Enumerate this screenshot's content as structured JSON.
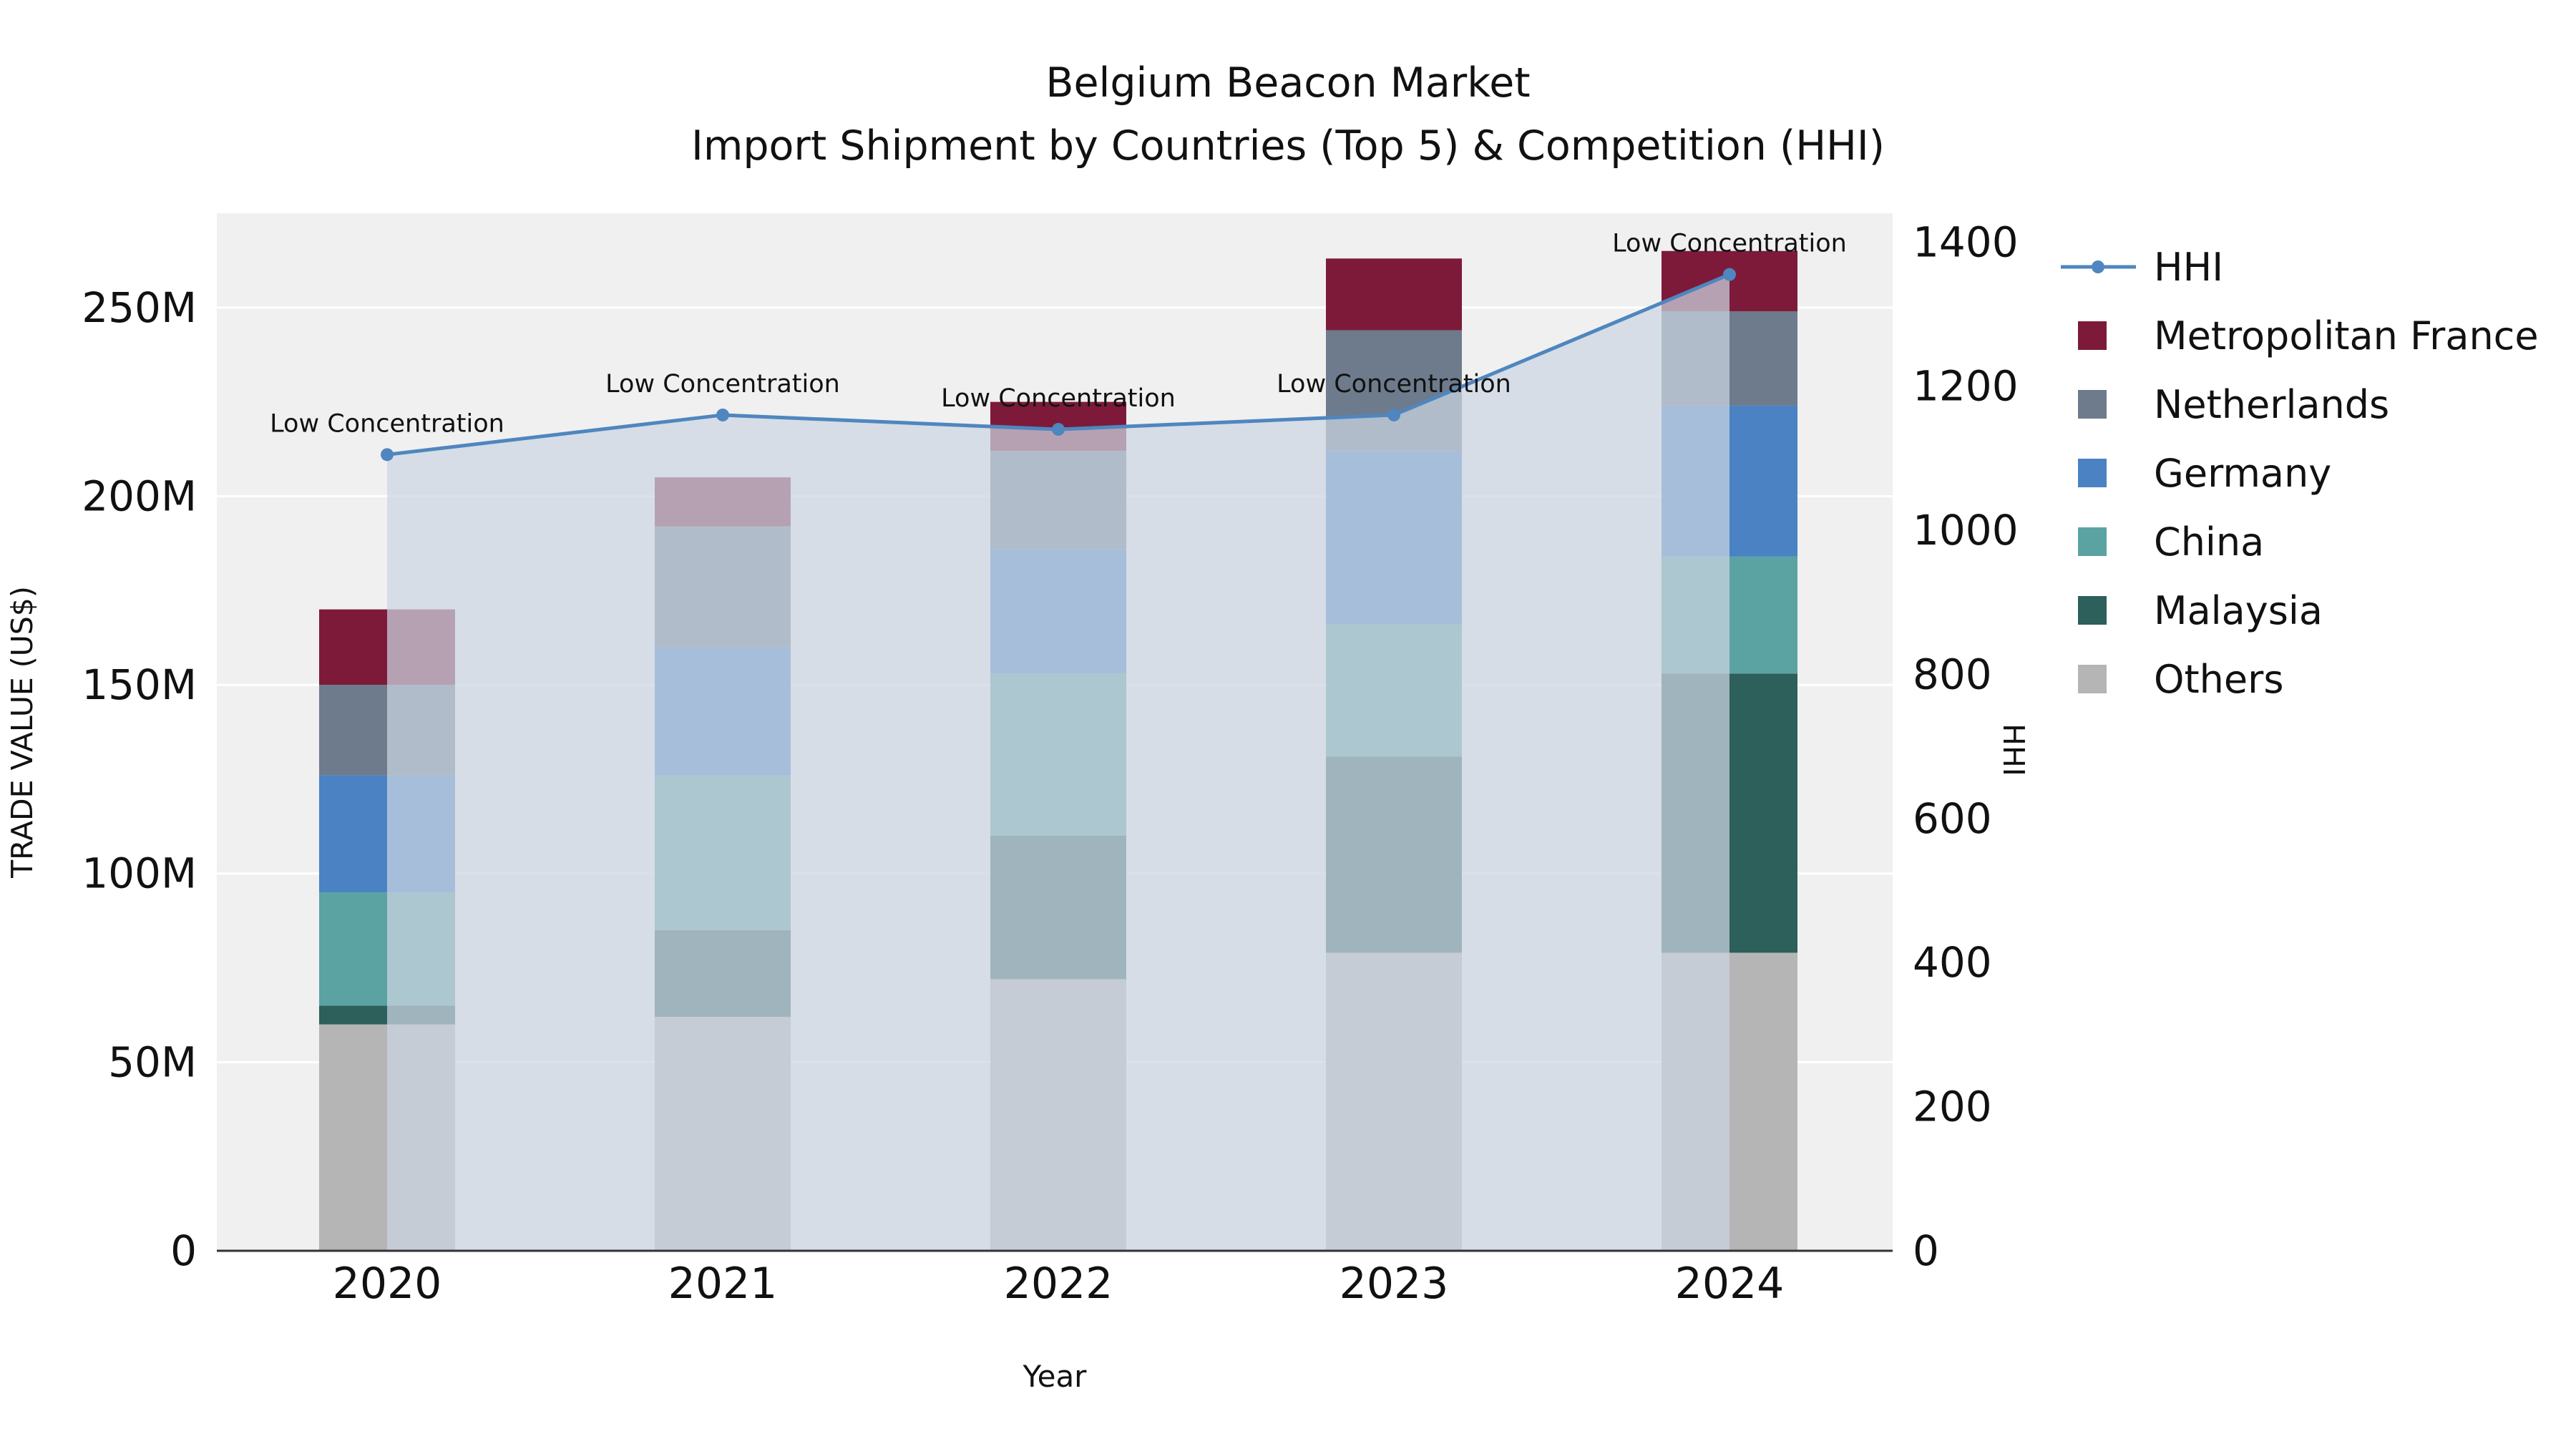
{
  "title": {
    "line1": "Belgium Beacon Market",
    "line2": "Import Shipment by Countries (Top 5) & Competition (HHI)"
  },
  "chart_data": {
    "type": "bar",
    "subtype": "stacked-bars-with-line-overlay-and-area",
    "categories": [
      "2020",
      "2021",
      "2022",
      "2023",
      "2024"
    ],
    "xlabel": "Year",
    "unit": "USD (millions)",
    "y_left": {
      "label": "TRADE VALUE (US$)",
      "max": 275,
      "ticks": [
        {
          "value": 0,
          "label": "0"
        },
        {
          "value": 50,
          "label": "50M"
        },
        {
          "value": 100,
          "label": "100M"
        },
        {
          "value": 150,
          "label": "150M"
        },
        {
          "value": 200,
          "label": "200M"
        },
        {
          "value": 250,
          "label": "250M"
        }
      ]
    },
    "y_right": {
      "label": "HHI",
      "max": 1440,
      "ticks": [
        {
          "value": 0,
          "label": "0"
        },
        {
          "value": 200,
          "label": "200"
        },
        {
          "value": 400,
          "label": "400"
        },
        {
          "value": 600,
          "label": "600"
        },
        {
          "value": 800,
          "label": "800"
        },
        {
          "value": 1000,
          "label": "1000"
        },
        {
          "value": 1200,
          "label": "1200"
        },
        {
          "value": 1400,
          "label": "1400"
        }
      ]
    },
    "series": [
      {
        "name": "Others",
        "color": "#b5b5b5",
        "values": [
          60,
          62,
          72,
          79,
          79
        ]
      },
      {
        "name": "Malaysia",
        "color": "#2d5f5b",
        "values": [
          5,
          23,
          38,
          52,
          74
        ]
      },
      {
        "name": "China",
        "color": "#5ba3a3",
        "values": [
          30,
          41,
          43,
          35,
          31
        ]
      },
      {
        "name": "Germany",
        "color": "#4a82c4",
        "values": [
          31,
          34,
          33,
          46,
          40
        ]
      },
      {
        "name": "Netherlands",
        "color": "#6d7b8c",
        "values": [
          24,
          32,
          26,
          32,
          25
        ]
      },
      {
        "name": "Metropolitan France",
        "color": "#7d1a3a",
        "values": [
          20,
          13,
          13,
          19,
          16
        ]
      }
    ],
    "line": {
      "name": "HHI",
      "color": "#4f86bf",
      "area_color": "#ccd6e2",
      "area_opacity": 0.72,
      "values": [
        1105,
        1160,
        1140,
        1160,
        1355
      ],
      "annotations": [
        "Low Concentration",
        "Low Concentration",
        "Low Concentration",
        "Low Concentration",
        "Low Concentration"
      ]
    },
    "legend": [
      {
        "label": "HHI",
        "type": "line",
        "color": "#4f86bf"
      },
      {
        "label": "Metropolitan France",
        "type": "swatch",
        "color": "#7d1a3a"
      },
      {
        "label": "Netherlands",
        "type": "swatch",
        "color": "#6d7b8c"
      },
      {
        "label": "Germany",
        "type": "swatch",
        "color": "#4a82c4"
      },
      {
        "label": "China",
        "type": "swatch",
        "color": "#5ba3a3"
      },
      {
        "label": "Malaysia",
        "type": "swatch",
        "color": "#2d5f5b"
      },
      {
        "label": "Others",
        "type": "swatch",
        "color": "#b5b5b5"
      }
    ],
    "grid": true,
    "legend_position": "right",
    "plot_background": "#f0f0f0"
  }
}
